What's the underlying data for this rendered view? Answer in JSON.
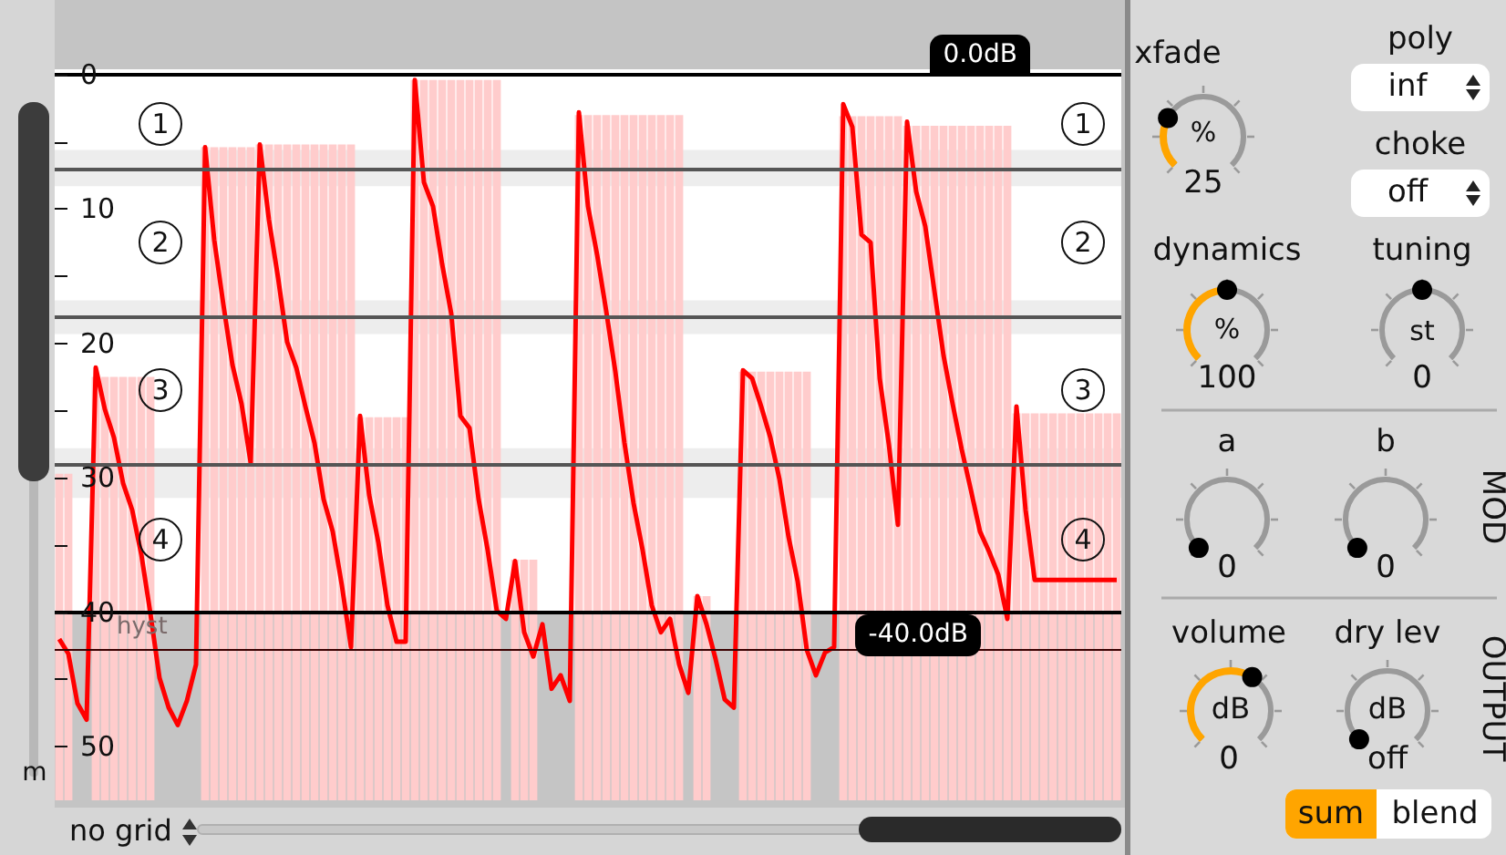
{
  "chart_data": [
    {
      "type": "line",
      "categories": [
        null,
        null,
        null,
        null,
        null,
        null,
        null,
        null,
        null,
        null,
        null,
        null,
        null,
        null,
        null,
        null,
        null,
        null,
        null,
        null,
        null,
        null,
        null,
        null,
        null,
        null,
        null,
        null,
        null,
        null,
        null,
        null,
        null,
        null,
        null,
        null,
        null,
        null,
        null,
        null,
        null,
        null,
        null,
        null,
        null,
        null,
        null,
        null,
        null,
        null,
        null,
        null,
        null,
        null,
        null,
        null,
        null,
        null,
        null,
        null,
        null,
        null,
        null,
        null,
        null,
        null,
        null,
        null,
        null,
        null,
        null,
        null,
        null,
        null,
        null,
        null,
        null,
        null,
        null,
        null,
        null,
        null,
        null,
        null,
        null,
        null,
        null,
        null,
        null,
        null,
        null,
        null,
        null,
        null,
        null,
        null,
        null,
        null,
        null,
        null,
        null,
        null,
        null,
        null,
        null,
        null,
        null,
        null,
        null,
        null,
        null,
        null,
        null,
        null,
        null,
        null,
        null
      ],
      "series": [
        {
          "type": "bar",
          "color": "#ffcccc",
          "base": [
            29.7,
            29.7,
            null,
            null,
            22.5,
            22.5,
            22.5,
            22.5,
            22.5,
            22.5,
            22.5,
            null,
            null,
            null,
            null,
            null,
            5.4,
            5.4,
            5.4,
            5.4,
            5.4,
            5.4,
            5.2,
            5.2,
            5.2,
            5.2,
            5.2,
            5.2,
            5.2,
            5.2,
            5.2,
            5.2,
            5.2,
            25.5,
            25.5,
            25.5,
            25.5,
            25.5,
            25.5,
            0.4,
            0.4,
            0.4,
            0.4,
            0.4,
            0.4,
            0.4,
            0.4,
            0.4,
            0.4,
            null,
            36.1,
            36.1,
            36.1,
            null,
            null,
            null,
            null,
            3.0,
            3.0,
            3.0,
            3.0,
            3.0,
            3.0,
            3.0,
            3.0,
            3.0,
            3.0,
            3.0,
            3.0,
            null,
            38.8,
            38.8,
            null,
            null,
            null,
            22.1,
            22.1,
            22.1,
            22.1,
            22.1,
            22.1,
            22.1,
            22.1,
            null,
            null,
            null,
            3.1,
            3.1,
            3.1,
            3.1,
            3.1,
            3.1,
            3.1,
            3.8,
            3.8,
            3.8,
            3.8,
            3.8,
            3.8,
            3.8,
            3.8,
            3.8,
            3.8,
            3.8,
            3.8,
            25.2,
            25.2,
            25.2,
            25.2,
            25.2,
            25.2,
            25.2,
            25.2,
            25.2,
            25.2,
            25.2,
            25.2
          ],
          "values": [
            24.3,
            24.3,
            null,
            null,
            31.5,
            31.5,
            31.5,
            31.5,
            31.5,
            31.5,
            31.5,
            null,
            null,
            null,
            null,
            null,
            48.6,
            48.6,
            48.6,
            48.6,
            48.6,
            48.6,
            48.8,
            48.8,
            48.8,
            48.8,
            48.8,
            48.8,
            48.8,
            48.8,
            48.8,
            48.8,
            48.8,
            28.5,
            28.5,
            28.5,
            28.5,
            28.5,
            28.5,
            53.6,
            53.6,
            53.6,
            53.6,
            53.6,
            53.6,
            53.6,
            53.6,
            53.6,
            53.6,
            null,
            17.9,
            17.9,
            17.9,
            null,
            null,
            null,
            null,
            51.0,
            51.0,
            51.0,
            51.0,
            51.0,
            51.0,
            51.0,
            51.0,
            51.0,
            51.0,
            51.0,
            51.0,
            null,
            15.2,
            15.2,
            null,
            null,
            null,
            31.9,
            31.9,
            31.9,
            31.9,
            31.9,
            31.9,
            31.9,
            31.9,
            null,
            null,
            null,
            50.9,
            50.9,
            50.9,
            50.9,
            50.9,
            50.9,
            50.9,
            50.2,
            50.2,
            50.2,
            50.2,
            50.2,
            50.2,
            50.2,
            50.2,
            50.2,
            50.2,
            50.2,
            50.2,
            28.8,
            28.8,
            28.8,
            28.8,
            28.8,
            28.8,
            28.8,
            28.8,
            28.8,
            28.8,
            28.8,
            28.8
          ]
        },
        {
          "color": "#ff0000",
          "values": [
            42.0,
            43.1,
            46.8,
            48.0,
            21.8,
            24.9,
            27.0,
            30.4,
            32.4,
            35.7,
            40.1,
            44.9,
            47.1,
            48.4,
            46.6,
            43.9,
            5.4,
            12.3,
            17.1,
            21.6,
            24.5,
            28.9,
            5.2,
            10.8,
            15.1,
            19.9,
            21.8,
            24.7,
            27.4,
            31.6,
            34.0,
            38.0,
            42.6,
            25.4,
            31.3,
            34.8,
            39.5,
            42.2,
            42.2,
            0.4,
            8.0,
            9.8,
            14.1,
            17.8,
            25.4,
            26.3,
            31.6,
            35.4,
            39.9,
            40.5,
            36.2,
            41.5,
            43.3,
            40.9,
            45.7,
            44.7,
            46.6,
            2.8,
            9.8,
            13.4,
            17.6,
            22.1,
            27.4,
            31.9,
            35.4,
            39.5,
            41.5,
            40.5,
            43.9,
            46.0,
            38.8,
            40.9,
            43.5,
            46.5,
            47.1,
            22.0,
            22.6,
            24.7,
            27.0,
            30.1,
            34.4,
            37.7,
            42.8,
            44.7,
            43.0,
            42.6,
            2.2,
            3.9,
            11.9,
            12.5,
            22.6,
            27.5,
            33.5,
            3.5,
            8.7,
            11.3,
            16.1,
            20.9,
            24.5,
            27.9,
            30.9,
            34.0,
            35.5,
            37.2,
            40.5,
            24.7,
            32.4,
            37.6,
            37.6,
            37.6,
            37.6,
            37.6,
            37.6,
            37.6,
            37.6,
            37.6,
            37.6
          ]
        }
      ],
      "ylim": [
        54,
        -0.4
      ],
      "yticks": [
        0,
        {
          "value": 5,
          "label": null
        },
        10,
        {
          "value": 15,
          "label": null
        },
        20,
        {
          "value": 25,
          "label": null
        },
        30,
        {
          "value": 35,
          "label": null
        },
        40,
        {
          "value": 45,
          "label": null
        },
        50
      ],
      "marker": "none",
      "ref_lines": [
        {
          "axis": "y",
          "value": 0,
          "label": "0.0dB",
          "color": "#000000"
        },
        {
          "axis": "y",
          "value": 40,
          "label": "-40.0dB",
          "color": "#000000"
        },
        {
          "axis": "y",
          "value": 42.8,
          "label": "hyst",
          "color": "#3a0000"
        },
        {
          "axis": "y",
          "value": 7,
          "color": "#555555"
        },
        {
          "axis": "y",
          "value": 18,
          "color": "#555555"
        },
        {
          "axis": "y",
          "value": 29,
          "color": "#555555"
        }
      ],
      "bands": [
        {
          "axis": "y",
          "from": 5.6,
          "to": 8.3,
          "color": "#e6e6e6"
        },
        {
          "axis": "y",
          "from": 16.8,
          "to": 19.3,
          "color": "#e6e6e6"
        },
        {
          "axis": "y",
          "from": 27.8,
          "to": 31.5,
          "color": "#e6e6e6"
        },
        {
          "axis": "y",
          "from": 40,
          "to": 54,
          "color": "#8c8c8c"
        }
      ],
      "annotations": [
        "1",
        "2",
        "3",
        "4",
        "1",
        "2",
        "3",
        "4",
        "m",
        "no grid"
      ]
    },
    {
      "type": "other",
      "annotations": [
        "xfade",
        "%",
        "25",
        "poly",
        "inf",
        "choke",
        "off",
        "dynamics",
        "%",
        "100",
        "tuning",
        "st",
        "0",
        "a",
        "0",
        "b",
        "0",
        "MOD",
        "volume",
        "dB",
        "0",
        "dry lev",
        "dB",
        "off",
        "OUTPUT",
        "sum",
        "blend"
      ]
    }
  ]
}
